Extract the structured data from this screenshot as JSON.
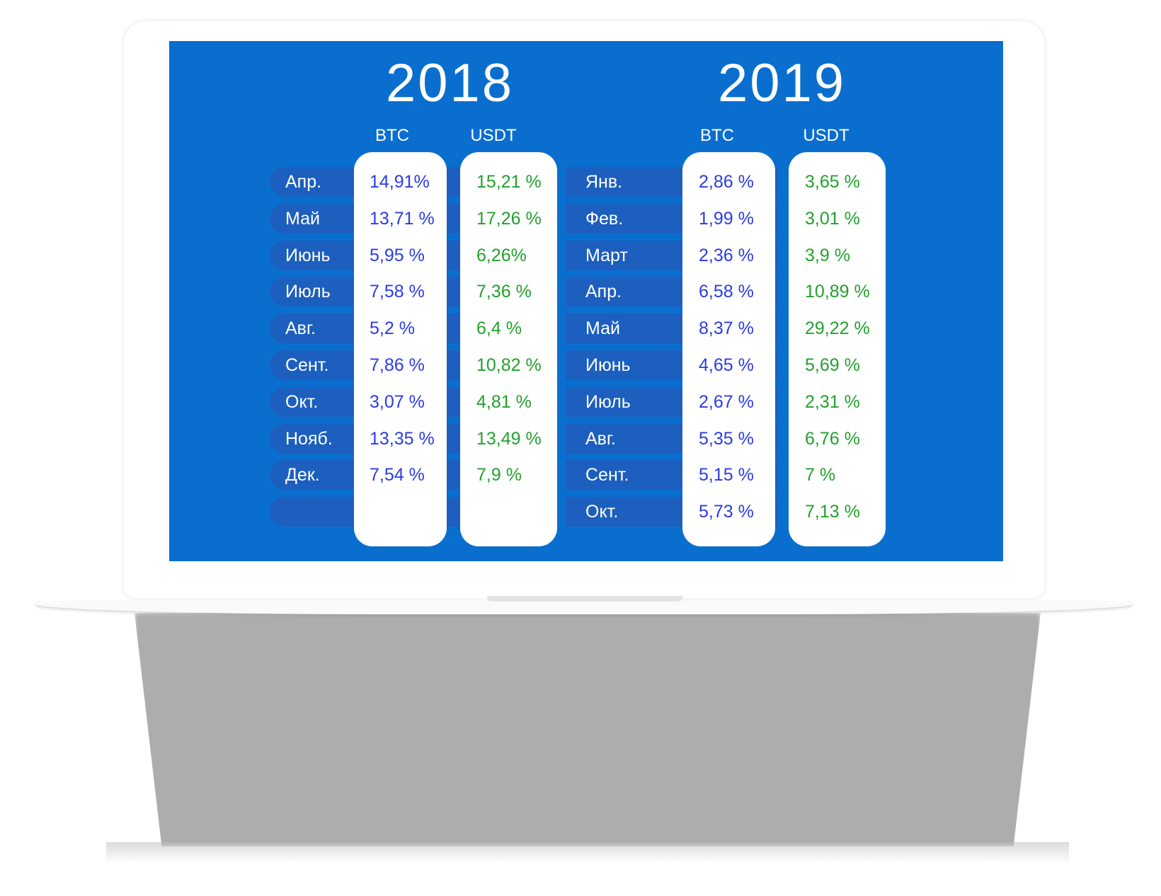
{
  "years": [
    {
      "year": "2018",
      "btc_header": "BTC",
      "usdt_header": "USDT",
      "rows": [
        {
          "month": "Апр.",
          "btc": "14,91%",
          "usdt": "15,21 %"
        },
        {
          "month": "Май",
          "btc": "13,71 %",
          "usdt": "17,26 %"
        },
        {
          "month": "Июнь",
          "btc": "5,95 %",
          "usdt": "6,26%"
        },
        {
          "month": "Июль",
          "btc": "7,58 %",
          "usdt": "7,36 %"
        },
        {
          "month": "Авг.",
          "btc": "5,2 %",
          "usdt": "6,4 %"
        },
        {
          "month": "Сент.",
          "btc": "7,86 %",
          "usdt": "10,82 %"
        },
        {
          "month": "Окт.",
          "btc": "3,07 %",
          "usdt": "4,81 %"
        },
        {
          "month": "Нояб.",
          "btc": "13,35 %",
          "usdt": "13,49 %"
        },
        {
          "month": "Дек.",
          "btc": "7,54 %",
          "usdt": "7,9 %"
        }
      ]
    },
    {
      "year": "2019",
      "btc_header": "BTC",
      "usdt_header": "USDT",
      "rows": [
        {
          "month": "Янв.",
          "btc": "2,86 %",
          "usdt": "3,65 %"
        },
        {
          "month": "Фев.",
          "btc": "1,99 %",
          "usdt": "3,01 %"
        },
        {
          "month": "Март",
          "btc": "2,36 %",
          "usdt": "3,9 %"
        },
        {
          "month": "Апр.",
          "btc": "6,58 %",
          "usdt": "10,89 %"
        },
        {
          "month": "Май",
          "btc": "8,37 %",
          "usdt": "29,22 %"
        },
        {
          "month": "Июнь",
          "btc": "4,65 %",
          "usdt": "5,69 %"
        },
        {
          "month": "Июль",
          "btc": "2,67 %",
          "usdt": "2,31 %"
        },
        {
          "month": "Авг.",
          "btc": "5,35 %",
          "usdt": "6,76 %"
        },
        {
          "month": "Сент.",
          "btc": "5,15 %",
          "usdt": "7 %"
        },
        {
          "month": "Окт.",
          "btc": "5,73 %",
          "usdt": "7,13 %"
        }
      ]
    }
  ],
  "colors": {
    "screen": "#0a6ecf",
    "band": "#1d5fbe",
    "btc": "#2a3ce6",
    "usdt": "#22a12d"
  }
}
